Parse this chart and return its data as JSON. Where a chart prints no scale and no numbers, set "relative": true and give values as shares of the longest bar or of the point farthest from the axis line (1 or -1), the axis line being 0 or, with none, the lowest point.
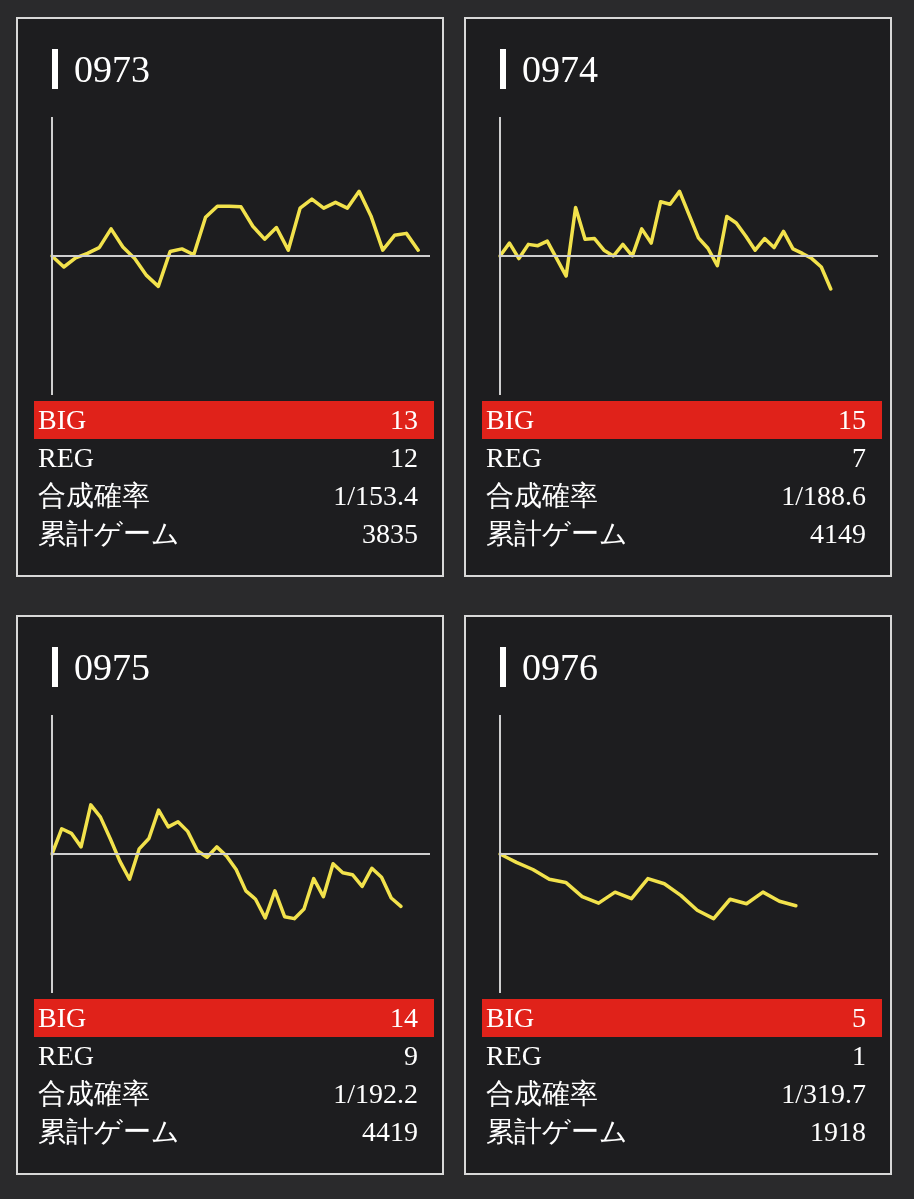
{
  "chart_data": [
    {
      "type": "line",
      "title": "0973",
      "relative": true,
      "marker": "none",
      "line_style": "solid",
      "categories": [
        null,
        null,
        null,
        null,
        null,
        null,
        null,
        null,
        null,
        null,
        null,
        null,
        null,
        null,
        null,
        null,
        null,
        null,
        null,
        null,
        null,
        null,
        null,
        null,
        null,
        null,
        null,
        null,
        null,
        null,
        null,
        null,
        null
      ],
      "series": [
        {
          "color": "#f2e24c",
          "values": [
            0,
            -0.17,
            -0.03,
            0.04,
            0.13,
            0.42,
            0.14,
            -0.04,
            -0.3,
            -0.47,
            0.07,
            0.11,
            0.02,
            0.6,
            0.77,
            0.77,
            0.76,
            0.46,
            0.26,
            0.44,
            0.09,
            0.74,
            0.88,
            0.74,
            0.83,
            0.74,
            1,
            0.62,
            0.09,
            0.32,
            0.35,
            0.09,
            null
          ]
        }
      ],
      "annotations": [
        "BIG",
        "13",
        "REG",
        "12",
        "合成確率",
        "1/153.4",
        "累計ゲーム",
        "3835"
      ]
    },
    {
      "type": "line",
      "title": "0974",
      "relative": true,
      "marker": "none",
      "line_style": "solid",
      "categories": [
        null,
        null,
        null,
        null,
        null,
        null,
        null,
        null,
        null,
        null,
        null,
        null,
        null,
        null,
        null,
        null,
        null,
        null,
        null,
        null,
        null,
        null,
        null,
        null,
        null,
        null,
        null,
        null,
        null,
        null,
        null,
        null,
        null,
        null,
        null,
        null,
        null,
        null,
        null,
        null,
        null
      ],
      "series": [
        {
          "color": "#f2e24c",
          "values": [
            0,
            0.2,
            -0.04,
            0.18,
            0.16,
            0.23,
            -0.04,
            -0.31,
            0.75,
            0.26,
            0.27,
            0.09,
            0,
            0.18,
            0,
            0.42,
            0.2,
            0.84,
            0.8,
            1,
            0.64,
            0.28,
            0.12,
            -0.15,
            0.61,
            0.51,
            0.31,
            0.09,
            0.27,
            0.13,
            0.38,
            0.11,
            0.04,
            -0.04,
            -0.17,
            -0.51,
            null,
            null,
            null,
            null,
            null
          ]
        }
      ],
      "annotations": [
        "BIG",
        "15",
        "REG",
        "7",
        "合成確率",
        "1/188.6",
        "累計ゲーム",
        "4149"
      ]
    },
    {
      "type": "line",
      "title": "0975",
      "relative": true,
      "marker": "none",
      "line_style": "solid",
      "categories": [
        null,
        null,
        null,
        null,
        null,
        null,
        null,
        null,
        null,
        null,
        null,
        null,
        null,
        null,
        null,
        null,
        null,
        null,
        null,
        null,
        null,
        null,
        null,
        null,
        null,
        null,
        null,
        null,
        null,
        null,
        null,
        null,
        null,
        null,
        null,
        null,
        null,
        null,
        null,
        null
      ],
      "series": [
        {
          "color": "#f2e24c",
          "values": [
            0,
            0.39,
            0.32,
            0.11,
            0.76,
            0.57,
            0.24,
            -0.11,
            -0.39,
            0.08,
            0.24,
            0.68,
            0.42,
            0.5,
            0.35,
            0.05,
            -0.05,
            0.11,
            -0.03,
            -0.24,
            -0.57,
            -0.7,
            -0.99,
            -0.57,
            -0.97,
            -1,
            -0.85,
            -0.38,
            -0.66,
            -0.15,
            -0.29,
            -0.32,
            -0.5,
            -0.22,
            -0.36,
            -0.68,
            -0.81,
            null,
            null,
            null
          ]
        }
      ],
      "annotations": [
        "BIG",
        "14",
        "REG",
        "9",
        "合成確率",
        "1/192.2",
        "累計ゲーム",
        "4419"
      ]
    },
    {
      "type": "line",
      "title": "0976",
      "relative": true,
      "marker": "none",
      "line_style": "solid",
      "categories": [
        null,
        null,
        null,
        null,
        null,
        null,
        null,
        null,
        null,
        null,
        null,
        null,
        null,
        null,
        null,
        null,
        null,
        null,
        null,
        null,
        null,
        null,
        null,
        null
      ],
      "series": [
        {
          "color": "#f2e24c",
          "values": [
            0,
            -0.13,
            -0.24,
            -0.39,
            -0.44,
            -0.66,
            -0.76,
            -0.59,
            -0.69,
            -0.38,
            -0.46,
            -0.64,
            -0.87,
            -1,
            -0.7,
            -0.77,
            -0.59,
            -0.73,
            -0.8,
            null,
            null,
            null,
            null,
            null
          ]
        }
      ],
      "annotations": [
        "BIG",
        "5",
        "REG",
        "1",
        "合成確率",
        "1/319.7",
        "累計ゲーム",
        "1918"
      ]
    }
  ]
}
